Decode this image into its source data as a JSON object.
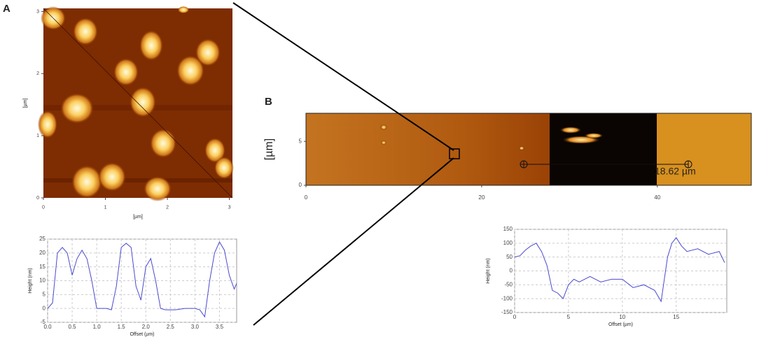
{
  "panels": {
    "a": "A",
    "b": "B"
  },
  "image_a": {
    "xlim": [
      0,
      3.05
    ],
    "ylim": [
      0,
      3.05
    ],
    "xticks": [
      0,
      1,
      2,
      3
    ],
    "yticks": [
      0,
      1,
      2,
      3
    ],
    "xlabel": "[µm]",
    "ylabel": "[µm]"
  },
  "image_b": {
    "xlim": [
      0,
      50.7
    ],
    "ylim": [
      0,
      8.2
    ],
    "xticks": [
      0,
      20,
      40
    ],
    "yticks": [
      0,
      5
    ],
    "ylabel": "[µm]",
    "measurement": "18.62 µm"
  },
  "chart_data": [
    {
      "type": "line",
      "xlabel": "Offset (µm)",
      "ylabel": "Height (nm)",
      "x": [
        0,
        0.1,
        0.2,
        0.3,
        0.4,
        0.5,
        0.6,
        0.7,
        0.8,
        0.9,
        1.0,
        1.1,
        1.2,
        1.3,
        1.4,
        1.5,
        1.6,
        1.7,
        1.8,
        1.9,
        2.0,
        2.1,
        2.2,
        2.3,
        2.4,
        2.6,
        2.8,
        3.0,
        3.1,
        3.2,
        3.3,
        3.4,
        3.5,
        3.6,
        3.7,
        3.8,
        3.85
      ],
      "series": [
        {
          "name": "profile",
          "color": "#4a4ad0",
          "values": [
            0,
            2,
            20,
            22,
            20,
            12,
            18,
            21,
            18,
            10,
            0,
            0,
            0,
            -0.5,
            8,
            22,
            23.5,
            22,
            8,
            3,
            15,
            18,
            10,
            0,
            -0.5,
            -0.5,
            0,
            0,
            -0.5,
            -3,
            10,
            20,
            24,
            21,
            12,
            7,
            9
          ]
        }
      ],
      "xlim": [
        0,
        3.85
      ],
      "ylim": [
        -5,
        25
      ],
      "xticks": [
        {
          "value": 0,
          "label": "0.0"
        },
        0.5,
        {
          "value": 1,
          "label": "1.0"
        },
        1.5,
        {
          "value": 2,
          "label": "2.0"
        },
        2.5,
        {
          "value": 3,
          "label": "3.0"
        },
        3.5
      ],
      "yticks": [
        -5,
        0,
        5,
        10,
        15,
        20,
        25
      ],
      "grid": true
    },
    {
      "type": "line",
      "xlabel": "Offset (µm)",
      "ylabel": "Height (nm)",
      "x": [
        0,
        0.5,
        1,
        1.5,
        2,
        2.5,
        3,
        3.5,
        4,
        4.5,
        5,
        5.5,
        6,
        7,
        8,
        9,
        10,
        11,
        12,
        13,
        13.6,
        14.2,
        14.6,
        15,
        15.5,
        16,
        17,
        18,
        19,
        19.5
      ],
      "series": [
        {
          "name": "profile",
          "color": "#4a4ad0",
          "values": [
            50,
            55,
            75,
            90,
            100,
            70,
            20,
            -70,
            -80,
            -100,
            -50,
            -30,
            -40,
            -20,
            -40,
            -30,
            -30,
            -60,
            -50,
            -70,
            -110,
            50,
            100,
            120,
            90,
            70,
            80,
            60,
            70,
            30
          ]
        }
      ],
      "xlim": [
        0,
        19.7
      ],
      "ylim": [
        -150,
        150
      ],
      "xticks": [
        0,
        5,
        10,
        15
      ],
      "yticks": [
        -150,
        -100,
        -50,
        0,
        50,
        100,
        150
      ],
      "grid": true
    }
  ]
}
